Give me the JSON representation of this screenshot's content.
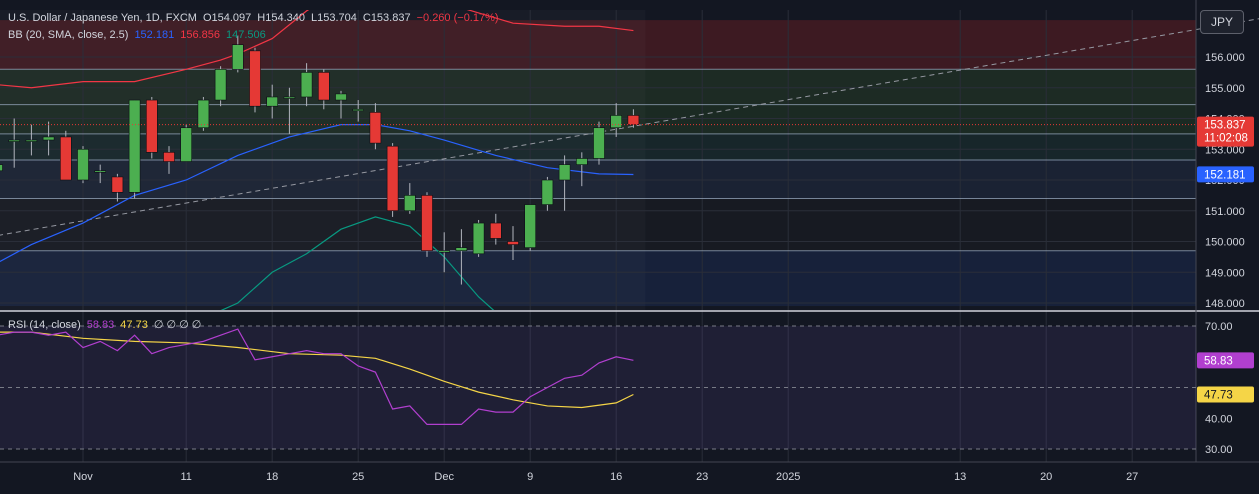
{
  "header": {
    "symbol": "U.S. Dollar / Japanese Yen, 1D, FXCM",
    "open": "O154.097",
    "high": "H154.340",
    "low": "L153.704",
    "close": "C153.837",
    "change": "−0.260 (−0.17%)",
    "bb_label": "BB (20, SMA, close, 2.5)",
    "bb_basis": "152.181",
    "bb_upper": "156.856",
    "bb_lower": "147.506",
    "rsi_label": "RSI (14, close)",
    "rsi_value": "58.83",
    "rsi_ma": "47.73",
    "rsi_extra": "∅ ∅ ∅ ∅"
  },
  "currency_button": "JPY",
  "colors": {
    "background": "#131722",
    "up": "#4caf50",
    "down": "#e53935",
    "bb_basis": "#2962ff",
    "bb_upper": "#f23645",
    "bb_lower": "#089981",
    "rsi": "#b13fcf",
    "rsi_ma": "#f5d547",
    "price_label_bg": "#e53935",
    "basis_label_bg": "#2962ff"
  },
  "chart_data": {
    "type": "candlestick",
    "price_axis": {
      "ticks": [
        148,
        149,
        150,
        151,
        152,
        153,
        154,
        155,
        156
      ],
      "range": [
        147.9,
        156.9
      ]
    },
    "last_price_label": "153.837",
    "countdown_label": "11:02:08",
    "basis_label": "152.181",
    "rsi_axis": {
      "ticks": [
        30,
        40,
        50,
        60,
        70
      ],
      "range": [
        27,
        73
      ],
      "hidden_tick": 50
    },
    "rsi_value_label": "58.83",
    "rsi_ma_label": "47.73",
    "x_axis": [
      {
        "label": "Nov",
        "index": 0
      },
      {
        "label": "11",
        "index": 6
      },
      {
        "label": "18",
        "index": 11
      },
      {
        "label": "25",
        "index": 16
      },
      {
        "label": "Dec",
        "index": 21
      },
      {
        "label": "9",
        "index": 26
      },
      {
        "label": "16",
        "index": 31
      },
      {
        "label": "23",
        "index": 36
      },
      {
        "label": "2025",
        "index": 41
      },
      {
        "label": "13",
        "index": 51
      },
      {
        "label": "20",
        "index": 56
      },
      {
        "label": "27",
        "index": 61
      }
    ],
    "candles": [
      {
        "i": -5,
        "o": 152.3,
        "h": 153.2,
        "l": 151.5,
        "c": 152.5
      },
      {
        "i": -4,
        "o": 153.3,
        "h": 154.0,
        "l": 152.4,
        "c": 153.3
      },
      {
        "i": -3,
        "o": 153.3,
        "h": 153.8,
        "l": 152.8,
        "c": 153.3
      },
      {
        "i": -2,
        "o": 153.3,
        "h": 153.9,
        "l": 152.8,
        "c": 153.4
      },
      {
        "i": -1,
        "o": 153.4,
        "h": 153.6,
        "l": 152.0,
        "c": 152.0
      },
      {
        "i": 0,
        "o": 152.0,
        "h": 153.1,
        "l": 151.9,
        "c": 153.0
      },
      {
        "i": 1,
        "o": 152.3,
        "h": 152.5,
        "l": 151.9,
        "c": 152.3
      },
      {
        "i": 2,
        "o": 152.1,
        "h": 152.2,
        "l": 151.3,
        "c": 151.6
      },
      {
        "i": 3,
        "o": 151.6,
        "h": 154.6,
        "l": 151.4,
        "c": 154.6
      },
      {
        "i": 4,
        "o": 154.6,
        "h": 154.7,
        "l": 152.7,
        "c": 152.9
      },
      {
        "i": 5,
        "o": 152.9,
        "h": 153.1,
        "l": 152.2,
        "c": 152.6
      },
      {
        "i": 6,
        "o": 152.6,
        "h": 153.8,
        "l": 152.6,
        "c": 153.7
      },
      {
        "i": 7,
        "o": 153.7,
        "h": 154.7,
        "l": 153.6,
        "c": 154.6
      },
      {
        "i": 8,
        "o": 154.6,
        "h": 155.7,
        "l": 154.4,
        "c": 155.6
      },
      {
        "i": 9,
        "o": 155.6,
        "h": 156.7,
        "l": 155.5,
        "c": 156.4
      },
      {
        "i": 10,
        "o": 156.2,
        "h": 156.3,
        "l": 154.2,
        "c": 154.4
      },
      {
        "i": 11,
        "o": 154.4,
        "h": 155.1,
        "l": 154.0,
        "c": 154.7
      },
      {
        "i": 12,
        "o": 154.7,
        "h": 155.0,
        "l": 153.5,
        "c": 154.7
      },
      {
        "i": 13,
        "o": 154.7,
        "h": 155.8,
        "l": 154.4,
        "c": 155.5
      },
      {
        "i": 14,
        "o": 155.5,
        "h": 155.6,
        "l": 154.3,
        "c": 154.6
      },
      {
        "i": 15,
        "o": 154.6,
        "h": 154.9,
        "l": 154.0,
        "c": 154.8
      },
      {
        "i": 16,
        "o": 154.3,
        "h": 154.6,
        "l": 153.9,
        "c": 154.3
      },
      {
        "i": 17,
        "o": 154.2,
        "h": 154.5,
        "l": 153.0,
        "c": 153.2
      },
      {
        "i": 18,
        "o": 153.1,
        "h": 153.2,
        "l": 150.8,
        "c": 151.0
      },
      {
        "i": 19,
        "o": 151.0,
        "h": 151.9,
        "l": 150.9,
        "c": 151.5
      },
      {
        "i": 20,
        "o": 151.5,
        "h": 151.6,
        "l": 149.5,
        "c": 149.7
      },
      {
        "i": 21,
        "o": 149.7,
        "h": 150.3,
        "l": 149.0,
        "c": 149.7
      },
      {
        "i": 22,
        "o": 149.7,
        "h": 150.4,
        "l": 148.6,
        "c": 149.8
      },
      {
        "i": 23,
        "o": 149.6,
        "h": 150.7,
        "l": 149.5,
        "c": 150.6
      },
      {
        "i": 24,
        "o": 150.6,
        "h": 150.9,
        "l": 149.9,
        "c": 150.1
      },
      {
        "i": 25,
        "o": 150.0,
        "h": 150.5,
        "l": 149.4,
        "c": 149.9
      },
      {
        "i": 26,
        "o": 149.8,
        "h": 151.2,
        "l": 149.7,
        "c": 151.2
      },
      {
        "i": 27,
        "o": 151.2,
        "h": 152.1,
        "l": 151.0,
        "c": 152.0
      },
      {
        "i": 28,
        "o": 152.0,
        "h": 152.8,
        "l": 151.0,
        "c": 152.5
      },
      {
        "i": 29,
        "o": 152.5,
        "h": 152.9,
        "l": 151.8,
        "c": 152.7
      },
      {
        "i": 30,
        "o": 152.7,
        "h": 153.9,
        "l": 152.5,
        "c": 153.7
      },
      {
        "i": 31,
        "o": 153.7,
        "h": 154.5,
        "l": 153.4,
        "c": 154.1
      },
      {
        "i": 32,
        "o": 154.1,
        "h": 154.3,
        "l": 153.7,
        "c": 153.8
      }
    ],
    "bb_basis": [
      [
        -7,
        148.7
      ],
      [
        -5,
        149.3
      ],
      [
        -3,
        149.9
      ],
      [
        0,
        150.6
      ],
      [
        3,
        151.5
      ],
      [
        6,
        152.0
      ],
      [
        9,
        152.8
      ],
      [
        12,
        153.4
      ],
      [
        15,
        153.8
      ],
      [
        17,
        153.8
      ],
      [
        19,
        153.6
      ],
      [
        21,
        153.3
      ],
      [
        24,
        152.8
      ],
      [
        27,
        152.4
      ],
      [
        30,
        152.2
      ],
      [
        32,
        152.18
      ]
    ],
    "bb_upper": [
      [
        -7,
        155.0
      ],
      [
        -5,
        155.1
      ],
      [
        -3,
        155.0
      ],
      [
        0,
        155.2
      ],
      [
        3,
        155.2
      ],
      [
        6,
        155.6
      ],
      [
        8,
        155.9
      ],
      [
        9,
        156.1
      ],
      [
        11,
        156.6
      ],
      [
        13,
        157.5
      ],
      [
        15,
        158.2
      ],
      [
        17,
        158.3
      ],
      [
        19,
        158.0
      ],
      [
        22,
        157.6
      ],
      [
        25,
        157.1
      ],
      [
        28,
        157.0
      ],
      [
        30,
        157.0
      ],
      [
        32,
        156.86
      ]
    ],
    "bb_lower": [
      [
        5,
        146.0
      ],
      [
        7,
        147.5
      ],
      [
        9,
        148.0
      ],
      [
        11,
        149.0
      ],
      [
        13,
        149.6
      ],
      [
        15,
        150.4
      ],
      [
        17,
        150.8
      ],
      [
        19,
        150.5
      ],
      [
        21,
        149.5
      ],
      [
        23,
        148.2
      ],
      [
        24,
        147.7
      ]
    ],
    "trendline": [
      [
        -7,
        150.0
      ],
      [
        70,
        157.4
      ]
    ],
    "horizontal_levels": [
      155.6,
      154.45,
      153.5,
      152.65,
      151.4,
      149.7
    ],
    "zones": [
      {
        "from": 155.6,
        "to": 157.2,
        "color": "#3d1a22"
      },
      {
        "from": 154.45,
        "to": 155.6,
        "color": "#1d2b24"
      },
      {
        "from": 153.5,
        "to": 154.45,
        "color": "#1b2a23"
      },
      {
        "from": 152.65,
        "to": 153.5,
        "color": "#17262a"
      },
      {
        "from": 151.4,
        "to": 152.65,
        "color": "#1a2233"
      },
      {
        "from": 149.7,
        "to": 151.4,
        "color": "#171a22"
      },
      {
        "from": 147.9,
        "to": 149.7,
        "color": "#17213a"
      }
    ],
    "rsi": [
      [
        -7,
        67
      ],
      [
        -5,
        67
      ],
      [
        -4,
        68
      ],
      [
        -3,
        68
      ],
      [
        -2,
        67
      ],
      [
        -1,
        68
      ],
      [
        0,
        63
      ],
      [
        1,
        65
      ],
      [
        2,
        62
      ],
      [
        3,
        67
      ],
      [
        4,
        61
      ],
      [
        5,
        63
      ],
      [
        6,
        64
      ],
      [
        7,
        65
      ],
      [
        8,
        67
      ],
      [
        9,
        69
      ],
      [
        10,
        59
      ],
      [
        11,
        60
      ],
      [
        12,
        61
      ],
      [
        13,
        62
      ],
      [
        14,
        61
      ],
      [
        15,
        61
      ],
      [
        16,
        57
      ],
      [
        17,
        55
      ],
      [
        18,
        43
      ],
      [
        19,
        44
      ],
      [
        20,
        38
      ],
      [
        21,
        38
      ],
      [
        22,
        38
      ],
      [
        23,
        43
      ],
      [
        24,
        42
      ],
      [
        25,
        42
      ],
      [
        26,
        47
      ],
      [
        27,
        50
      ],
      [
        28,
        53
      ],
      [
        29,
        54
      ],
      [
        30,
        58
      ],
      [
        31,
        60
      ],
      [
        32,
        58.83
      ]
    ],
    "rsi_ma": [
      [
        -7,
        68
      ],
      [
        -3,
        68
      ],
      [
        0,
        66
      ],
      [
        3,
        65
      ],
      [
        6,
        64.5
      ],
      [
        9,
        63
      ],
      [
        12,
        61
      ],
      [
        15,
        60.5
      ],
      [
        17,
        59.5
      ],
      [
        19,
        56
      ],
      [
        21,
        52
      ],
      [
        23,
        48.5
      ],
      [
        25,
        46
      ],
      [
        27,
        44
      ],
      [
        29,
        43.5
      ],
      [
        31,
        45
      ],
      [
        32,
        47.73
      ]
    ]
  }
}
